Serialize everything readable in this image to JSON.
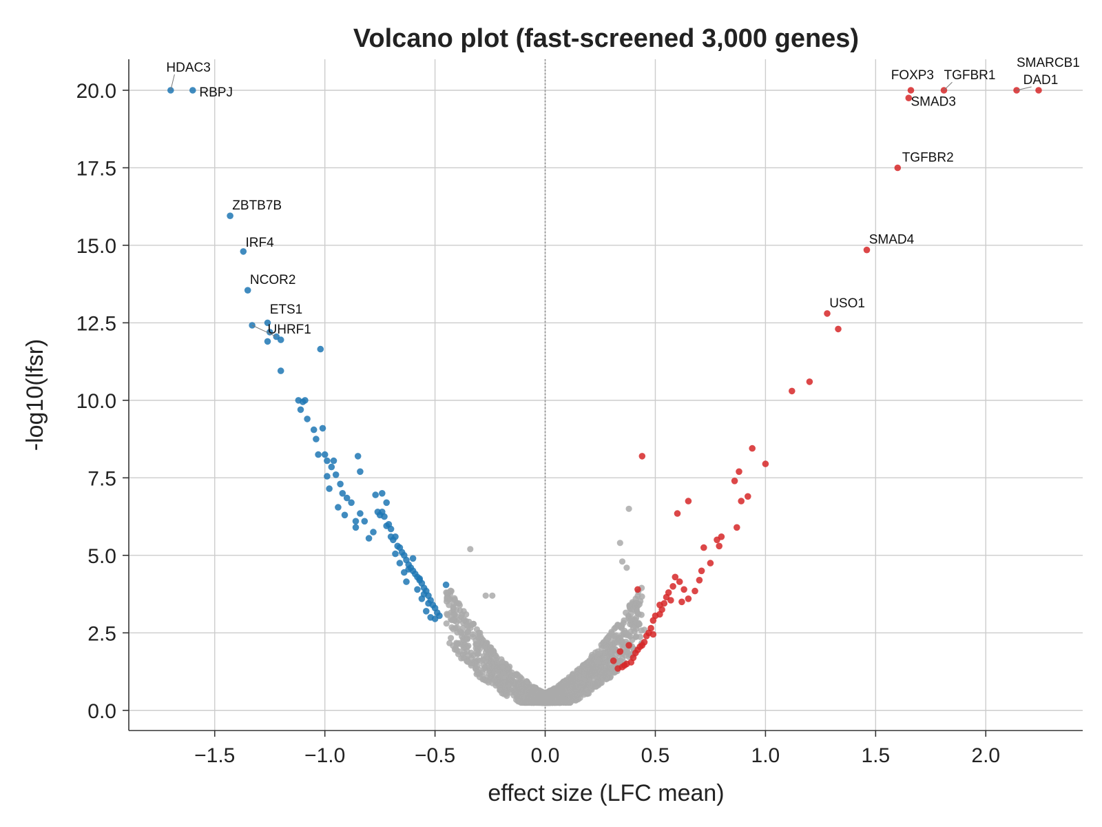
{
  "chart_data": {
    "type": "scatter",
    "title": "Volcano plot (fast-screened 3,000 genes)",
    "xlabel": "effect size (LFC mean)",
    "ylabel": "-log10(lfsr)",
    "xlim": [
      -1.89,
      2.44
    ],
    "ylim": [
      -0.65,
      21.0
    ],
    "xticks": [
      -1.5,
      -1.0,
      -0.5,
      0.0,
      0.5,
      1.0,
      1.5,
      2.0
    ],
    "xtick_labels": [
      "−1.5",
      "−1.0",
      "−0.5",
      "0.0",
      "0.5",
      "1.0",
      "1.5",
      "2.0"
    ],
    "yticks": [
      0.0,
      2.5,
      5.0,
      7.5,
      10.0,
      12.5,
      15.0,
      17.5,
      20.0
    ],
    "ytick_labels": [
      "0.0",
      "2.5",
      "5.0",
      "7.5",
      "10.0",
      "12.5",
      "15.0",
      "17.5",
      "20.0"
    ],
    "grid": true,
    "vline_x": 0.0,
    "colors": {
      "down": "#1f77b4",
      "up": "#d62728",
      "ns": "#aaaaaa"
    },
    "series": [
      {
        "group": "down",
        "color": "#1f77b4",
        "x": [
          -1.7,
          -1.6,
          -1.43,
          -1.37,
          -1.35,
          -1.33,
          -1.26,
          -1.26,
          -1.25,
          -1.22,
          -1.2,
          -1.2,
          -1.02,
          -1.12,
          -1.1,
          -1.11,
          -1.09,
          -1.08,
          -1.05,
          -1.04,
          -1.01,
          -1.0,
          -0.99,
          -0.97,
          -0.96,
          -0.95,
          -0.93,
          -0.92,
          -0.9,
          -0.88,
          -0.86,
          -0.85,
          -0.84,
          -0.84,
          -0.82,
          -0.8,
          -0.78,
          -0.77,
          -0.76,
          -0.75,
          -0.74,
          -0.73,
          -0.72,
          -0.71,
          -0.7,
          -0.69,
          -0.68,
          -0.67,
          -0.66,
          -0.65,
          -0.64,
          -0.63,
          -0.62,
          -0.61,
          -0.6,
          -0.59,
          -0.58,
          -0.57,
          -0.56,
          -0.55,
          -0.54,
          -0.53,
          -0.52,
          -0.51,
          -0.5,
          -0.49,
          -0.48,
          -0.45,
          -0.57,
          -0.62,
          -0.6,
          -0.55,
          -0.53,
          -0.58,
          -0.63,
          -0.66,
          -0.7,
          -0.72,
          -0.74,
          -0.86,
          -0.91,
          -0.94,
          -0.98,
          -0.99,
          -1.03,
          -0.68,
          -0.64,
          -0.56,
          -0.54,
          -0.52,
          -0.5
        ],
        "y": [
          20.0,
          20.0,
          15.95,
          14.8,
          13.55,
          12.42,
          12.5,
          11.9,
          12.2,
          12.05,
          11.95,
          10.95,
          11.65,
          10.0,
          9.95,
          9.7,
          10.0,
          9.4,
          9.05,
          8.75,
          9.1,
          8.25,
          8.05,
          7.85,
          8.05,
          7.6,
          7.3,
          7.0,
          6.85,
          6.7,
          6.1,
          8.2,
          7.7,
          6.35,
          6.1,
          5.55,
          5.75,
          6.95,
          6.4,
          6.3,
          6.4,
          6.25,
          5.95,
          6.0,
          5.85,
          5.5,
          5.6,
          5.3,
          5.25,
          5.1,
          5.0,
          4.85,
          4.7,
          4.6,
          4.5,
          4.4,
          4.3,
          4.2,
          4.1,
          3.95,
          3.85,
          3.7,
          3.55,
          3.4,
          3.3,
          3.15,
          3.05,
          4.05,
          4.25,
          4.55,
          4.9,
          3.75,
          3.45,
          3.9,
          4.15,
          4.75,
          5.6,
          6.7,
          7.0,
          5.9,
          6.3,
          6.55,
          7.15,
          7.55,
          8.25,
          5.05,
          4.45,
          3.6,
          3.2,
          3.0,
          2.95
        ]
      },
      {
        "group": "up",
        "color": "#d62728",
        "x": [
          2.24,
          2.14,
          1.81,
          1.66,
          1.65,
          1.6,
          1.46,
          1.28,
          1.33,
          1.2,
          1.12,
          1.0,
          0.94,
          0.92,
          0.89,
          0.88,
          0.86,
          0.87,
          0.8,
          0.79,
          0.78,
          0.75,
          0.71,
          0.7,
          0.68,
          0.65,
          0.65,
          0.63,
          0.62,
          0.6,
          0.59,
          0.58,
          0.56,
          0.55,
          0.54,
          0.53,
          0.52,
          0.5,
          0.49,
          0.48,
          0.47,
          0.46,
          0.45,
          0.44,
          0.43,
          0.42,
          0.41,
          0.4,
          0.39,
          0.37,
          0.36,
          0.35,
          0.33,
          0.44,
          0.42,
          0.38,
          0.34,
          0.31,
          0.57,
          0.52,
          0.49,
          0.61,
          0.72
        ],
        "y": [
          20.0,
          20.0,
          20.0,
          20.0,
          19.75,
          17.5,
          14.85,
          12.8,
          12.3,
          10.6,
          10.3,
          7.95,
          8.45,
          6.9,
          6.75,
          7.7,
          7.4,
          5.9,
          5.6,
          5.3,
          5.5,
          4.75,
          4.5,
          4.2,
          3.85,
          6.75,
          3.6,
          3.9,
          3.5,
          6.35,
          4.3,
          4.0,
          3.8,
          3.65,
          3.45,
          3.25,
          3.1,
          3.05,
          2.9,
          2.65,
          2.5,
          2.4,
          2.2,
          2.1,
          2.05,
          1.95,
          1.85,
          1.7,
          1.55,
          1.5,
          1.45,
          1.4,
          1.35,
          8.2,
          3.9,
          2.1,
          1.9,
          1.6,
          3.55,
          3.4,
          2.45,
          4.15,
          5.25
        ]
      },
      {
        "group": "ns",
        "color": "#aaaaaa",
        "x": [],
        "y": []
      }
    ],
    "annotations": [
      {
        "label": "HDAC3",
        "x": -1.7,
        "y": 20.0,
        "tx": -1.72,
        "ty": 20.6,
        "leader": true
      },
      {
        "label": "RBPJ",
        "x": -1.6,
        "y": 20.0,
        "tx": -1.57,
        "ty": 19.8,
        "leader": false
      },
      {
        "label": "ZBTB7B",
        "x": -1.43,
        "y": 15.95,
        "tx": -1.42,
        "ty": 16.15,
        "leader": false
      },
      {
        "label": "IRF4",
        "x": -1.37,
        "y": 14.8,
        "tx": -1.36,
        "ty": 14.95,
        "leader": false
      },
      {
        "label": "NCOR2",
        "x": -1.35,
        "y": 13.55,
        "tx": -1.34,
        "ty": 13.75,
        "leader": false
      },
      {
        "label": "ETS1",
        "x": -1.26,
        "y": 12.5,
        "tx": -1.25,
        "ty": 12.8,
        "leader": false
      },
      {
        "label": "UHRF1",
        "x": -1.33,
        "y": 12.42,
        "tx": -1.26,
        "ty": 12.15,
        "leader": true
      },
      {
        "label": "FOXP3",
        "x": 1.66,
        "y": 20.0,
        "tx": 1.57,
        "ty": 20.35,
        "leader": false
      },
      {
        "label": "TGFBR1",
        "x": 1.81,
        "y": 20.0,
        "tx": 1.81,
        "ty": 20.35,
        "leader": true
      },
      {
        "label": "SMAD3",
        "x": 1.65,
        "y": 19.75,
        "tx": 1.66,
        "ty": 19.5,
        "leader": false
      },
      {
        "label": "SMARCB1",
        "x": 2.24,
        "y": 20.0,
        "tx": 2.14,
        "ty": 20.75,
        "leader": false
      },
      {
        "label": "DAD1",
        "x": 2.14,
        "y": 20.0,
        "tx": 2.17,
        "ty": 20.2,
        "leader": true
      },
      {
        "label": "TGFBR2",
        "x": 1.6,
        "y": 17.5,
        "tx": 1.62,
        "ty": 17.7,
        "leader": false
      },
      {
        "label": "SMAD4",
        "x": 1.46,
        "y": 14.85,
        "tx": 1.47,
        "ty": 15.05,
        "leader": false
      },
      {
        "label": "USO1",
        "x": 1.28,
        "y": 12.8,
        "tx": 1.29,
        "ty": 13.0,
        "leader": false
      }
    ]
  }
}
